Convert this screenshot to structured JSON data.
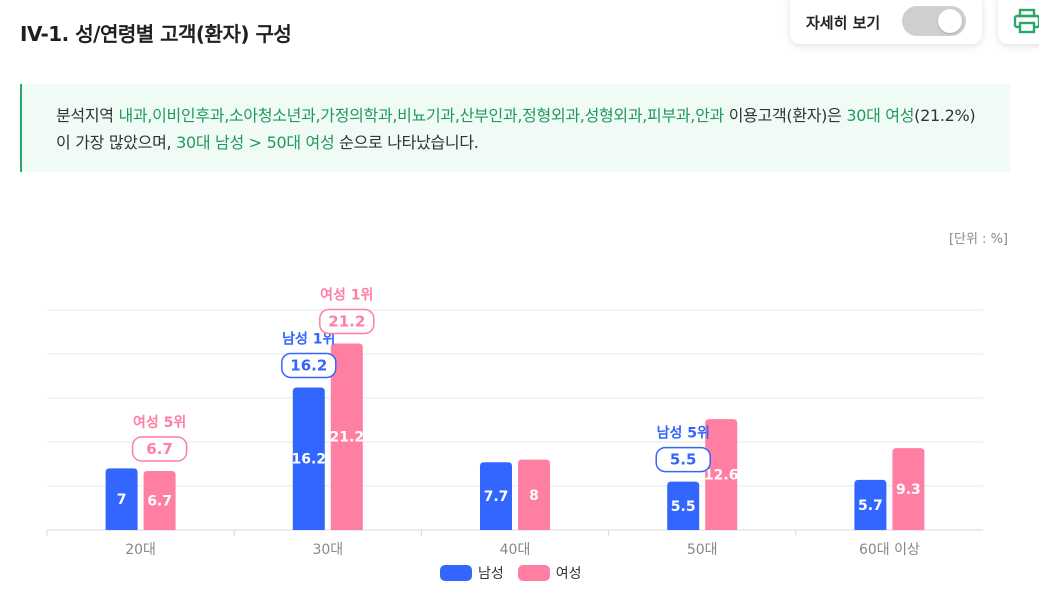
{
  "header": {
    "title": "IV-1. 성/연령별 고객(환자) 구성",
    "toggle_label": "자세히 보기",
    "toggle_on": false
  },
  "summary": {
    "t1": "분석지역 ",
    "h1": "내과,이비인후과,소아청소년과,가정의학과,비뇨기과,산부인과,정형외과,성형외과,피부과,안과",
    "t2": " 이용고객(환자)은 ",
    "h2": "30대 여성",
    "t3": "(21.2%)이 가장 많았으며, ",
    "h3": "30대 남성 > 50대 여성",
    "t4": " 순으로 나타났습니다."
  },
  "unit_label": "[단위 : %]",
  "colors": {
    "male": "#3366ff",
    "female": "#ff7fa3",
    "accent": "#1f9a5c"
  },
  "chart_data": {
    "type": "bar",
    "categories": [
      "20대",
      "30대",
      "40대",
      "50대",
      "60대 이상"
    ],
    "series": [
      {
        "name": "남성",
        "values": [
          7,
          16.2,
          7.7,
          5.5,
          5.7
        ]
      },
      {
        "name": "여성",
        "values": [
          6.7,
          21.2,
          8,
          12.6,
          9.3
        ]
      }
    ],
    "ylim": [
      0,
      25
    ],
    "grid": true,
    "legend_position": "bottom-center",
    "annotations": [
      {
        "series": 1,
        "category": 0,
        "label": "여성 5위",
        "value": "6.7"
      },
      {
        "series": 0,
        "category": 1,
        "label": "남성 1위",
        "value": "16.2"
      },
      {
        "series": 1,
        "category": 1,
        "label": "여성 1위",
        "value": "21.2"
      },
      {
        "series": 0,
        "category": 3,
        "label": "남성 5위",
        "value": "5.5"
      }
    ]
  }
}
